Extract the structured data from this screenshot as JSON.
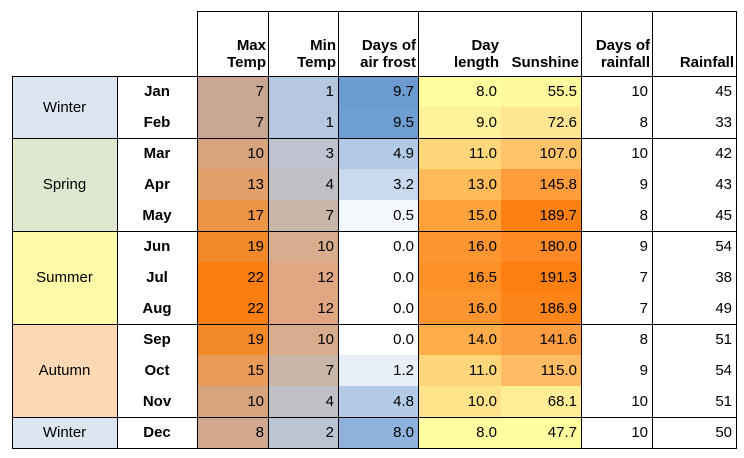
{
  "headers": {
    "max_temp": [
      "Max",
      "Temp"
    ],
    "min_temp": [
      "Min",
      "Temp"
    ],
    "air_frost": [
      "Days of",
      "air frost"
    ],
    "day_length": [
      "Day",
      "length"
    ],
    "sunshine": [
      "",
      "Sunshine"
    ],
    "rain_days": [
      "Days of",
      "rainfall"
    ],
    "rainfall": [
      "",
      "Rainfall"
    ]
  },
  "seasons": [
    {
      "label": "Winter",
      "rows": 2,
      "color": "#dde6f0"
    },
    {
      "label": "Spring",
      "rows": 3,
      "color": "#dde8cf"
    },
    {
      "label": "Summer",
      "rows": 3,
      "color": "#fff9a8"
    },
    {
      "label": "Autumn",
      "rows": 3,
      "color": "#fcd9b4"
    },
    {
      "label": "Winter",
      "rows": 1,
      "color": "#dde6f0"
    }
  ],
  "rows": [
    {
      "month": "Jan",
      "max": "7",
      "min": "1",
      "frost": "9.7",
      "day": "8.0",
      "sun": "55.5",
      "rdays": "10",
      "rain": "45"
    },
    {
      "month": "Feb",
      "max": "7",
      "min": "1",
      "frost": "9.5",
      "day": "9.0",
      "sun": "72.6",
      "rdays": "8",
      "rain": "33"
    },
    {
      "month": "Mar",
      "max": "10",
      "min": "3",
      "frost": "4.9",
      "day": "11.0",
      "sun": "107.0",
      "rdays": "10",
      "rain": "42"
    },
    {
      "month": "Apr",
      "max": "13",
      "min": "4",
      "frost": "3.2",
      "day": "13.0",
      "sun": "145.8",
      "rdays": "9",
      "rain": "43"
    },
    {
      "month": "May",
      "max": "17",
      "min": "7",
      "frost": "0.5",
      "day": "15.0",
      "sun": "189.7",
      "rdays": "8",
      "rain": "45"
    },
    {
      "month": "Jun",
      "max": "19",
      "min": "10",
      "frost": "0.0",
      "day": "16.0",
      "sun": "180.0",
      "rdays": "9",
      "rain": "54"
    },
    {
      "month": "Jul",
      "max": "22",
      "min": "12",
      "frost": "0.0",
      "day": "16.5",
      "sun": "191.3",
      "rdays": "7",
      "rain": "38"
    },
    {
      "month": "Aug",
      "max": "22",
      "min": "12",
      "frost": "0.0",
      "day": "16.0",
      "sun": "186.9",
      "rdays": "7",
      "rain": "49"
    },
    {
      "month": "Sep",
      "max": "19",
      "min": "10",
      "frost": "0.0",
      "day": "14.0",
      "sun": "141.6",
      "rdays": "8",
      "rain": "51"
    },
    {
      "month": "Oct",
      "max": "15",
      "min": "7",
      "frost": "1.2",
      "day": "11.0",
      "sun": "115.0",
      "rdays": "9",
      "rain": "54"
    },
    {
      "month": "Nov",
      "max": "10",
      "min": "4",
      "frost": "4.8",
      "day": "10.0",
      "sun": "68.1",
      "rdays": "10",
      "rain": "51"
    },
    {
      "month": "Dec",
      "max": "8",
      "min": "2",
      "frost": "8.0",
      "day": "8.0",
      "sun": "47.7",
      "rdays": "10",
      "rain": "50"
    }
  ],
  "colors": {
    "max": [
      "#c8a894",
      "#c8a894",
      "#d6a57e",
      "#e2a06a",
      "#eb9545",
      "#f28a2a",
      "#fb7f10",
      "#fb7f10",
      "#f28a2a",
      "#e99a58",
      "#d6a57e",
      "#cfa88e"
    ],
    "min": [
      "#b6c8e0",
      "#b6c8e0",
      "#bec3cf",
      "#c0c1c7",
      "#c8b7a8",
      "#d8ad8e",
      "#e0a882",
      "#e0a882",
      "#d8ad8e",
      "#c8b7a8",
      "#c0c1c7",
      "#bbc4d2"
    ],
    "frost": [
      "#6b9bd1",
      "#6f9ed3",
      "#b2cae6",
      "#c9daee",
      "#f4f7fc",
      "#ffffff",
      "#ffffff",
      "#ffffff",
      "#ffffff",
      "#e8eff8",
      "#b4cbe7",
      "#8fb2dc"
    ],
    "day": [
      "#ffffa0",
      "#fff29a",
      "#ffd77a",
      "#ffbb5a",
      "#fea33b",
      "#fd9630",
      "#fc9128",
      "#fd9630",
      "#fead48",
      "#ffd77a",
      "#ffe48c",
      "#ffffa0"
    ],
    "sun": [
      "#fff89c",
      "#ffe690",
      "#ffc46a",
      "#ff9c3c",
      "#fc8014",
      "#fd8a24",
      "#fc7f10",
      "#fc8418",
      "#fe9e40",
      "#ffbc62",
      "#ffee96",
      "#ffff9f"
    ]
  }
}
